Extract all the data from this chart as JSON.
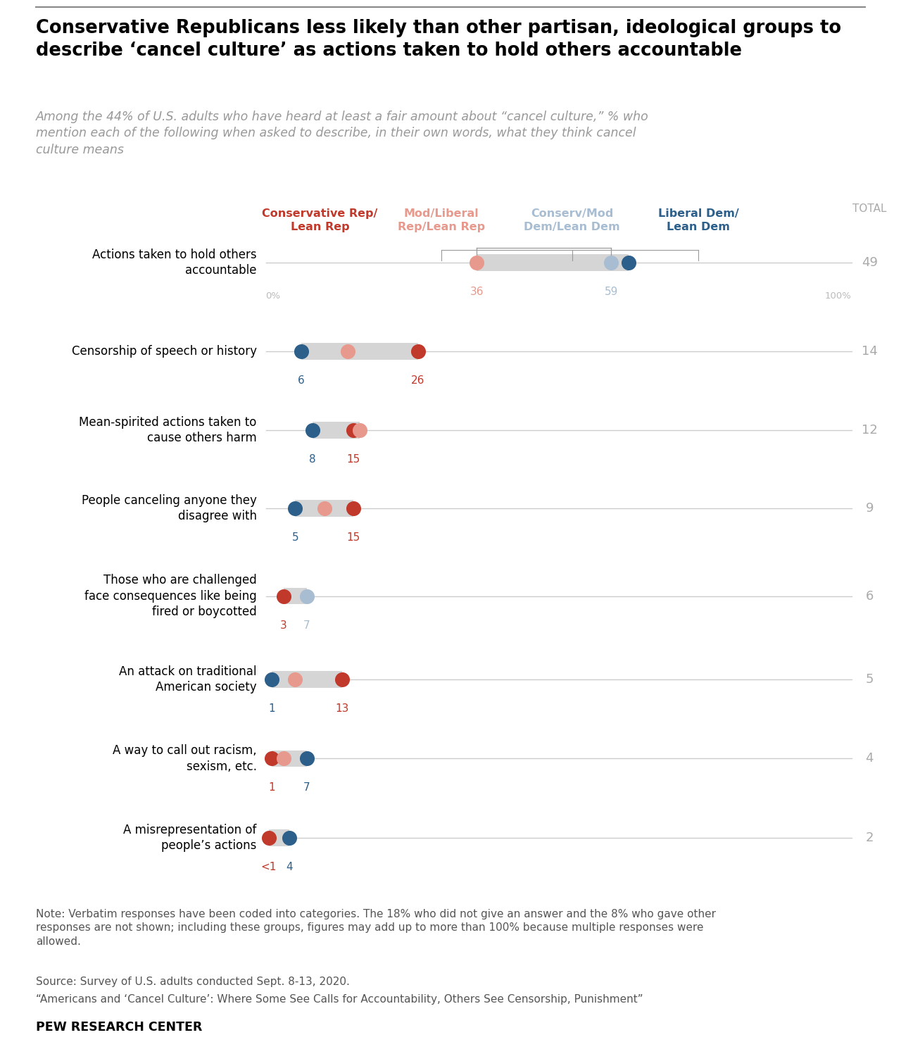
{
  "title": "Conservative Republicans less likely than other partisan, ideological groups to\ndescribe ‘cancel culture’ as actions taken to hold others accountable",
  "subtitle": "Among the 44% of U.S. adults who have heard at least a fair amount about “cancel culture,” % who\nmention each of the following when asked to describe, in their own words, what they think cancel\nculture means",
  "categories": [
    "Actions taken to hold others\naccountable",
    "Censorship of speech or history",
    "Mean-spirited actions taken to\ncause others harm",
    "People canceling anyone they\ndisagree with",
    "Those who are challenged\nface consequences like being\nfired or boycotted",
    "An attack on traditional\nAmerican society",
    "A way to call out racism,\nsexism, etc.",
    "A misrepresentation of\npeople’s actions"
  ],
  "totals": [
    49,
    14,
    12,
    9,
    6,
    5,
    4,
    2
  ],
  "rows": [
    {
      "con_rep": null,
      "mod_lib_rep": 36,
      "conserv_mod_dem": 59,
      "lib_dem": 59,
      "con_rep_label": "",
      "mod_lib_rep_label": "36",
      "conserv_mod_dem_label": "59",
      "lib_dem_label": ""
    },
    {
      "con_rep": 26,
      "mod_lib_rep": null,
      "conserv_mod_dem": null,
      "lib_dem": 6,
      "con_rep_label": "26",
      "mod_lib_rep_label": "",
      "conserv_mod_dem_label": "",
      "lib_dem_label": "6"
    },
    {
      "con_rep": null,
      "mod_lib_rep": 15,
      "conserv_mod_dem": null,
      "lib_dem": 8,
      "con_rep_label": "",
      "mod_lib_rep_label": "15",
      "conserv_mod_dem_label": "",
      "lib_dem_label": "8"
    },
    {
      "con_rep": 15,
      "mod_lib_rep": null,
      "conserv_mod_dem": null,
      "lib_dem": 5,
      "con_rep_label": "15",
      "mod_lib_rep_label": "",
      "conserv_mod_dem_label": "",
      "lib_dem_label": "5"
    },
    {
      "con_rep": null,
      "mod_lib_rep": null,
      "conserv_mod_dem": 7,
      "lib_dem": 3,
      "con_rep_label": "",
      "mod_lib_rep_label": "",
      "conserv_mod_dem_label": "7",
      "lib_dem_label": "3"
    },
    {
      "con_rep": 13,
      "mod_lib_rep": null,
      "conserv_mod_dem": null,
      "lib_dem": 1,
      "con_rep_label": "13",
      "mod_lib_rep_label": "",
      "conserv_mod_dem_label": "",
      "lib_dem_label": "1"
    },
    {
      "con_rep": null,
      "mod_lib_rep": null,
      "conserv_mod_dem": null,
      "lib_dem": 1,
      "con_rep_label": "",
      "mod_lib_rep_label": "",
      "conserv_mod_dem_label": "",
      "lib_dem_label": "1"
    },
    {
      "con_rep": null,
      "mod_lib_rep": null,
      "conserv_mod_dem": null,
      "lib_dem": null,
      "con_rep_label": "",
      "mod_lib_rep_label": "",
      "conserv_mod_dem_label": "",
      "lib_dem_label": ""
    }
  ],
  "colors": {
    "con_rep": "#c0392b",
    "mod_lib_rep": "#e8998d",
    "conserv_mod_dem": "#a8bdd1",
    "lib_dem": "#2c5f8a"
  },
  "col_headers": [
    "Conservative Rep/\nLean Rep",
    "Mod/Liberal\nRep/Lean Rep",
    "Conserv/Mod\nDem/Lean Dem",
    "Liberal Dem/\nLean Dem"
  ],
  "note": "Note: Verbatim responses have been coded into categories. The 18% who did not give an answer and the 8% who gave other\nresponses are not shown; including these groups, figures may add up to more than 100% because multiple responses were\nallowed.",
  "source": "Source: Survey of U.S. adults conducted Sept. 8-13, 2020.",
  "report": "“Americans and ‘Cancel Culture’: Where Some See Calls for Accountability, Others See Censorship, Punishment”",
  "publisher": "PEW RESEARCH CENTER"
}
